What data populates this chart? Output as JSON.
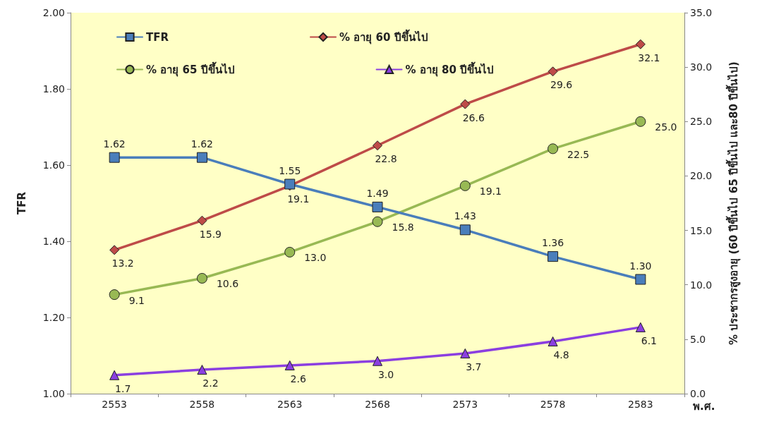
{
  "chart_data": {
    "type": "line",
    "categories": [
      "2553",
      "2558",
      "2563",
      "2568",
      "2573",
      "2578",
      "2583"
    ],
    "xlabel": "พ.ศ.",
    "ylabel": "TFR",
    "y2label": "% ประชากรสูงอายุ (60 ปีขึ้นไป 65 ปีขึ้นไป และ80 ปีขึ้นไป)",
    "ylim": [
      1.0,
      2.0
    ],
    "yticks": [
      {
        "value": 1.0,
        "label": "1.00"
      },
      {
        "value": 1.2,
        "label": "1.20"
      },
      {
        "value": 1.4,
        "label": "1.40"
      },
      {
        "value": 1.6,
        "label": "1.60"
      },
      {
        "value": 1.8,
        "label": "1.80"
      },
      {
        "value": 2.0,
        "label": "2.00"
      }
    ],
    "y2lim": [
      0,
      35
    ],
    "y2ticks": [
      {
        "value": 0,
        "label": "0.0"
      },
      {
        "value": 5,
        "label": "5.0"
      },
      {
        "value": 10,
        "label": "10.0"
      },
      {
        "value": 15,
        "label": "15.0"
      },
      {
        "value": 20,
        "label": "20.0"
      },
      {
        "value": 25,
        "label": "25.0"
      },
      {
        "value": 30,
        "label": "30.0"
      },
      {
        "value": 35,
        "label": "35.0"
      }
    ],
    "grid": false,
    "legend": "top left",
    "series": [
      {
        "name": "TFR",
        "color": "#4a7ebb",
        "marker": "square",
        "values": [
          1.62,
          1.62,
          1.55,
          1.49,
          1.43,
          1.36,
          1.3
        ],
        "value_labels": [
          "1.62",
          "1.62",
          "1.55",
          "1.49",
          "1.43",
          "1.36",
          "1.30"
        ]
      },
      {
        "name": "% อายุ 60 ปีขึ้นไป",
        "color": "#be4b48",
        "marker": "diamond",
        "axis": "y2",
        "values": [
          13.2,
          15.9,
          19.1,
          22.8,
          26.6,
          29.6,
          32.1
        ],
        "value_labels": [
          "13.2",
          "15.9",
          "19.1",
          "22.8",
          "26.6",
          "29.6",
          "32.1"
        ]
      },
      {
        "name": "% อายุ 65 ปีขึ้นไป",
        "color": "#98b954",
        "marker": "circle",
        "axis": "y2",
        "values": [
          9.1,
          10.6,
          13.0,
          15.8,
          19.1,
          22.5,
          25.0
        ],
        "value_labels": [
          "9.1",
          "10.6",
          "13.0",
          "15.8",
          "19.1",
          "22.5",
          "25.0"
        ]
      },
      {
        "name": "% อายุ 80 ปีขึ้นไป",
        "color": "#8b3fe0",
        "marker": "triangle",
        "axis": "y2",
        "values": [
          1.7,
          2.2,
          2.6,
          3.0,
          3.7,
          4.8,
          6.1
        ],
        "value_labels": [
          "1.7",
          "2.2",
          "2.6",
          "3.0",
          "3.7",
          "4.8",
          "6.1"
        ]
      }
    ]
  }
}
